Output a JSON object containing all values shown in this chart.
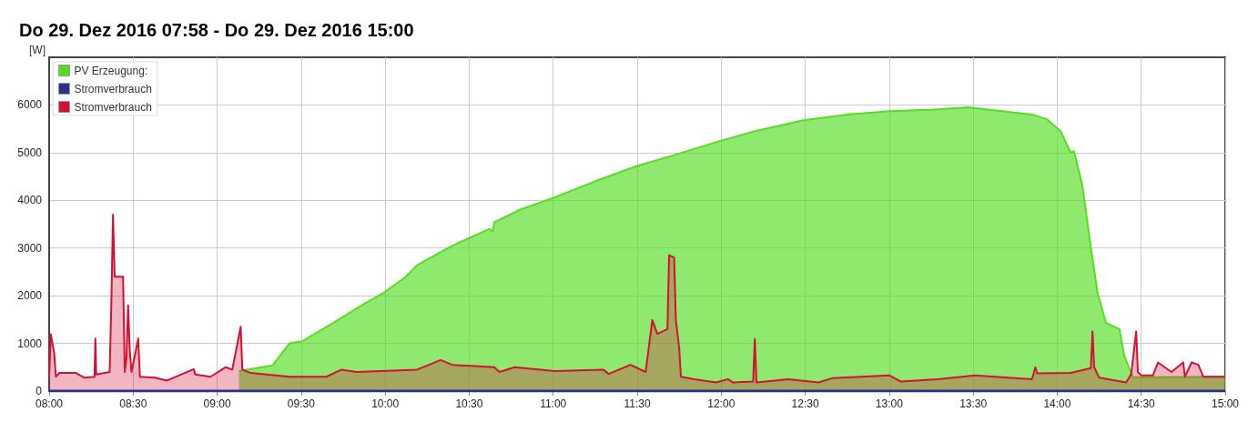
{
  "chart_data": {
    "type": "area",
    "title": "Do 29. Dez 2016 07:58 - Do 29. Dez 2016 15:00",
    "ylabel": "[W]",
    "xlim": [
      8,
      15
    ],
    "xticks": [
      {
        "value": 8,
        "label": "08:00"
      },
      {
        "value": 8.5,
        "label": "08:30"
      },
      {
        "value": 9,
        "label": "09:00"
      },
      {
        "value": 9.5,
        "label": "09:30"
      },
      {
        "value": 10,
        "label": "10:00"
      },
      {
        "value": 10.5,
        "label": "10:30"
      },
      {
        "value": 11,
        "label": "11:00"
      },
      {
        "value": 11.5,
        "label": "11:30"
      },
      {
        "value": 12,
        "label": "12:00"
      },
      {
        "value": 12.5,
        "label": "12:30"
      },
      {
        "value": 13,
        "label": "13:00"
      },
      {
        "value": 13.5,
        "label": "13:30"
      },
      {
        "value": 14,
        "label": "14:00"
      },
      {
        "value": 14.5,
        "label": "14:30"
      },
      {
        "value": 15,
        "label": "15:00"
      }
    ],
    "ylim": [
      0,
      7000
    ],
    "yticks": [
      0,
      1000,
      2000,
      3000,
      4000,
      5000,
      6000
    ],
    "grid": true,
    "legend": "top left",
    "series": [
      {
        "name": "PV Erzeugung:",
        "color": "#55dd22",
        "x": [
          9.13,
          9.33,
          9.38,
          9.43,
          9.51,
          9.69,
          9.87,
          9.99,
          10.12,
          10.19,
          10.22,
          10.4,
          10.62,
          10.64,
          10.65,
          10.8,
          11,
          11.25,
          11.5,
          11.75,
          11.95,
          12.2,
          12.49,
          12.75,
          13,
          13.25,
          13.47,
          13.65,
          13.85,
          13.94,
          14.02,
          14.08,
          14.1,
          14.15,
          14.2,
          14.24,
          14.29,
          14.37,
          14.4,
          14.45,
          15
        ],
        "values": [
          420,
          540,
          770,
          1000,
          1050,
          1430,
          1820,
          2060,
          2390,
          2640,
          2700,
          3050,
          3400,
          3350,
          3540,
          3800,
          4050,
          4400,
          4720,
          4980,
          5200,
          5450,
          5680,
          5800,
          5870,
          5900,
          5950,
          5880,
          5800,
          5700,
          5450,
          5000,
          5030,
          4300,
          3020,
          2060,
          1430,
          1300,
          730,
          290,
          300
        ]
      },
      {
        "name": "Stromverbrauch",
        "type": "line",
        "color": "#2b2f8a",
        "x": [
          8,
          15
        ],
        "values": [
          0,
          0
        ]
      },
      {
        "name": "Stromverbrauch",
        "color": "#d41034",
        "x": [
          8,
          8.01,
          8.03,
          8.04,
          8.06,
          8.16,
          8.21,
          8.27,
          8.275,
          8.28,
          8.36,
          8.37,
          8.38,
          8.39,
          8.44,
          8.45,
          8.46,
          8.47,
          8.48,
          8.49,
          8.53,
          8.54,
          8.63,
          8.7,
          8.74,
          8.86,
          8.87,
          8.96,
          9.05,
          9.09,
          9.14,
          9.15,
          9.2,
          9.43,
          9.65,
          9.74,
          9.83,
          10.19,
          10.33,
          10.4,
          10.65,
          10.68,
          10.77,
          11.01,
          11.3,
          11.33,
          11.46,
          11.55,
          11.59,
          11.62,
          11.68,
          11.69,
          11.72,
          11.73,
          11.75,
          11.76,
          11.84,
          11.97,
          12.04,
          12.07,
          12.19,
          12.2,
          12.21,
          12.4,
          12.58,
          12.66,
          13,
          13.07,
          13.29,
          13.51,
          13.85,
          13.87,
          13.88,
          14.08,
          14.2,
          14.21,
          14.22,
          14.25,
          14.41,
          14.44,
          14.47,
          14.48,
          14.5,
          14.57,
          14.6,
          14.68,
          14.75,
          14.76,
          14.8,
          14.84,
          14.87,
          15
        ],
        "values": [
          290,
          1190,
          800,
          300,
          380,
          380,
          280,
          300,
          1100,
          350,
          400,
          1800,
          3700,
          2400,
          2400,
          400,
          700,
          1800,
          850,
          400,
          1100,
          300,
          280,
          220,
          280,
          460,
          350,
          300,
          500,
          450,
          1350,
          450,
          380,
          300,
          300,
          450,
          400,
          450,
          650,
          550,
          500,
          400,
          500,
          420,
          450,
          360,
          550,
          400,
          1490,
          1200,
          1300,
          2850,
          2800,
          1500,
          900,
          300,
          250,
          180,
          250,
          180,
          200,
          1090,
          180,
          250,
          180,
          270,
          330,
          200,
          250,
          330,
          250,
          500,
          370,
          380,
          480,
          1250,
          500,
          280,
          180,
          350,
          1250,
          400,
          330,
          330,
          600,
          400,
          600,
          300,
          600,
          550,
          300,
          300
        ]
      }
    ]
  }
}
